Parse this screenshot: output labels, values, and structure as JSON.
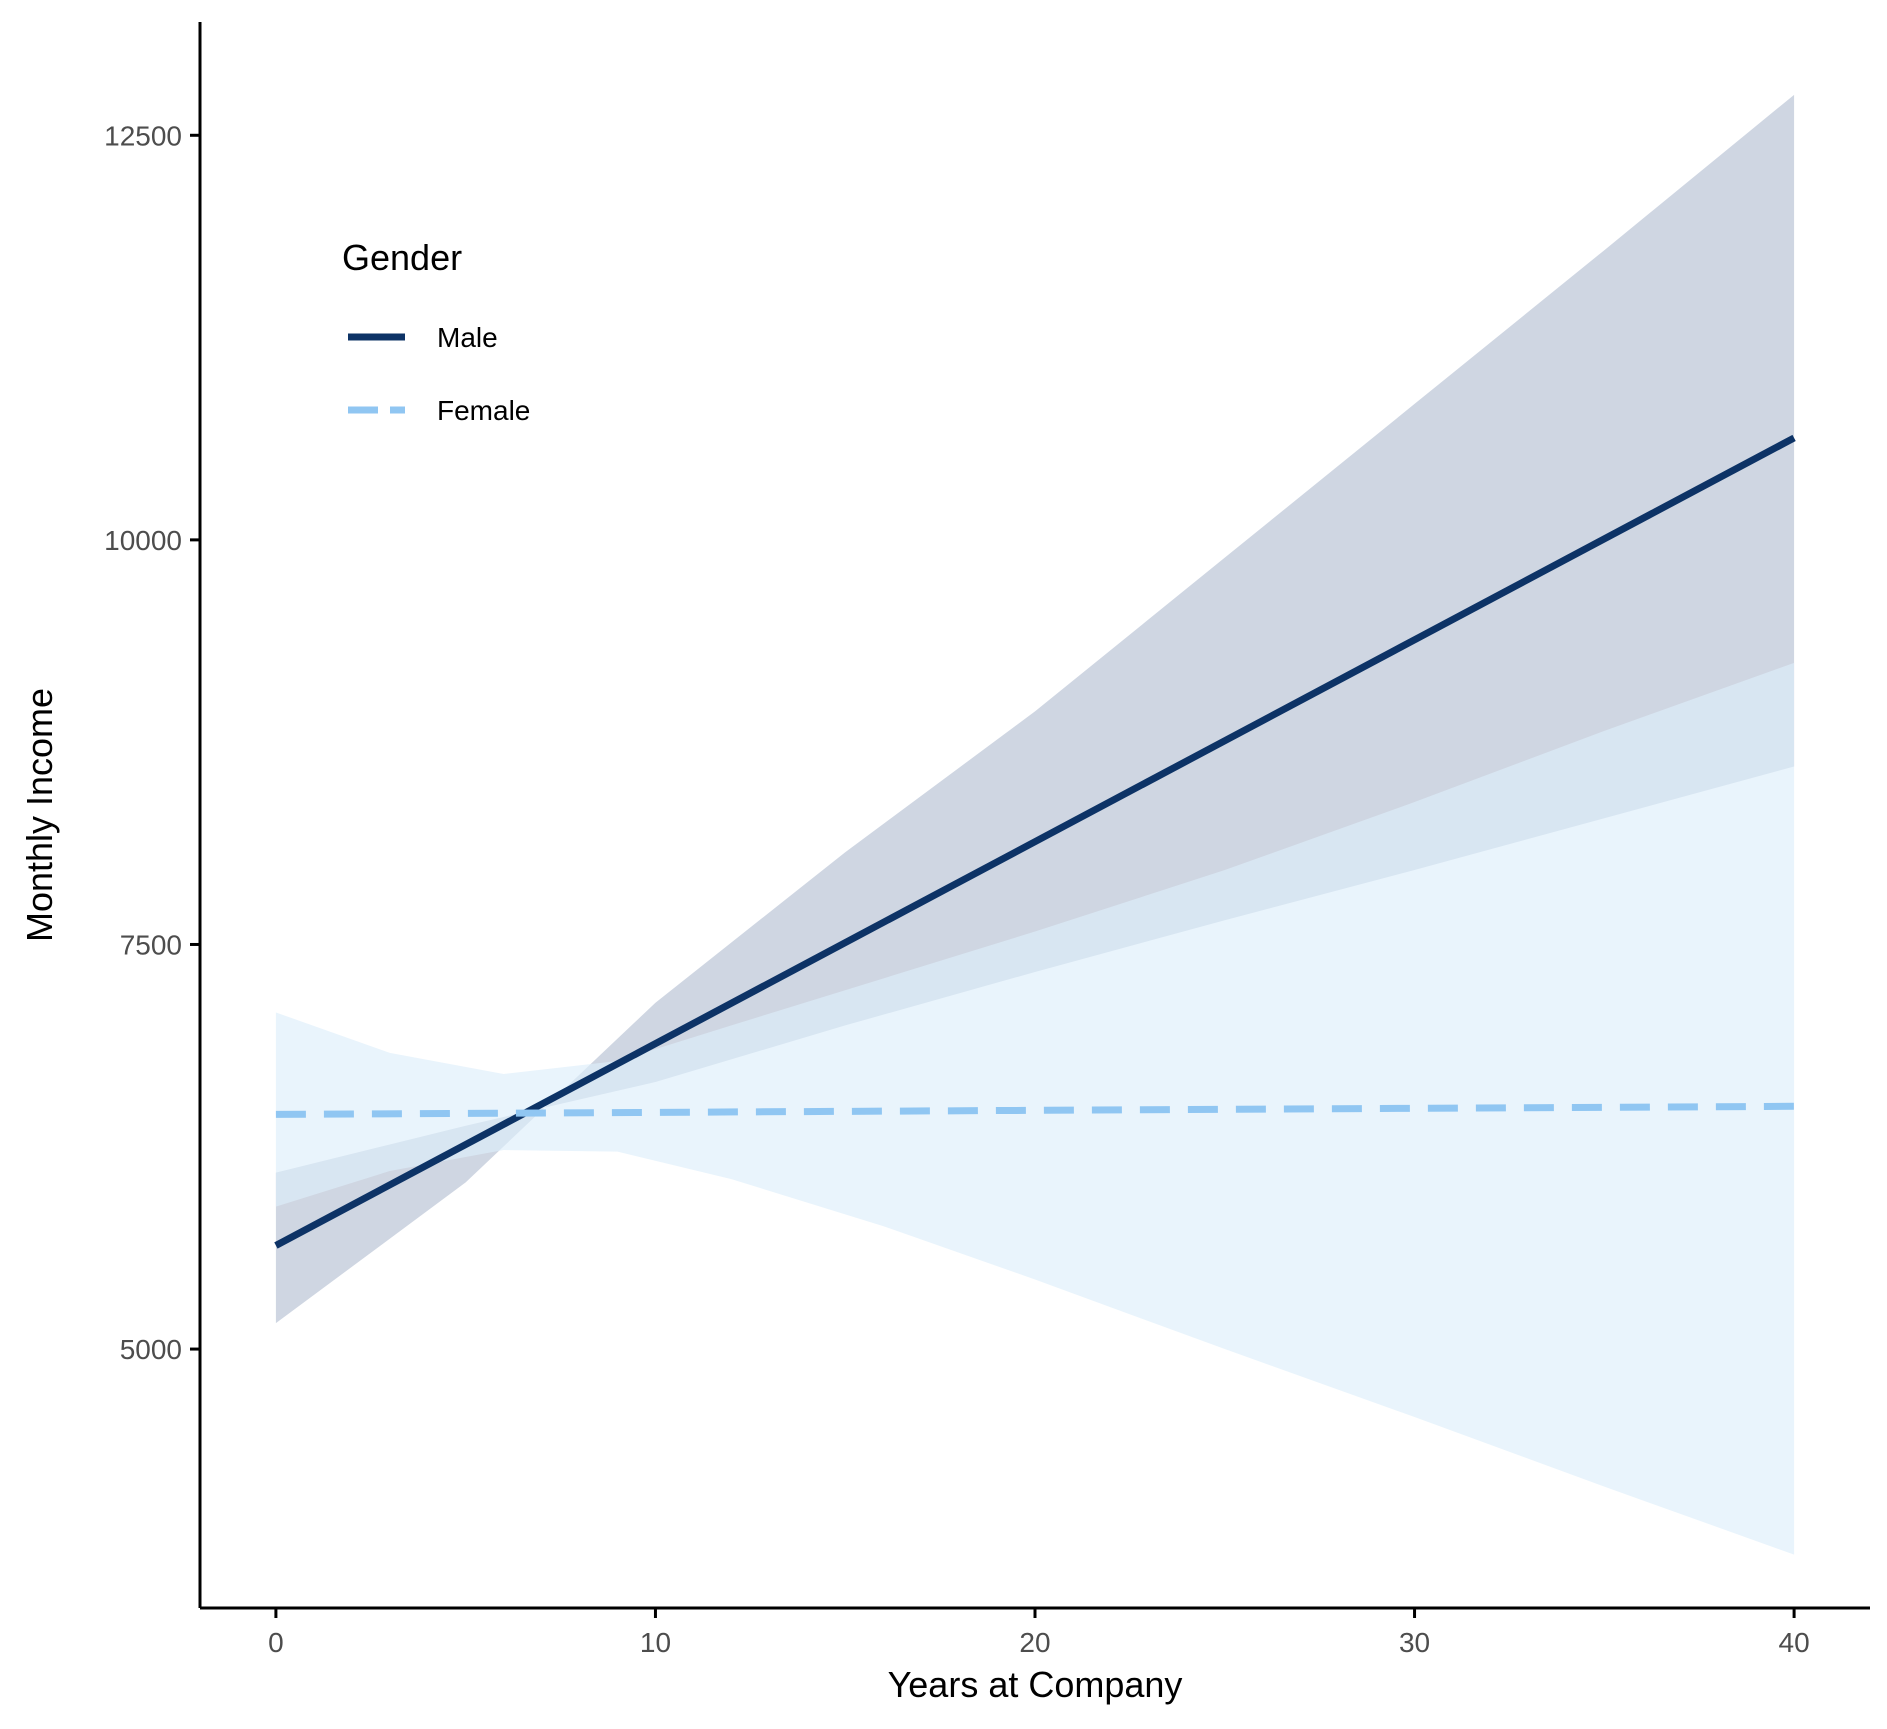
{
  "chart_data": {
    "type": "line",
    "xlabel": "Years at Company",
    "ylabel": "Monthly Income",
    "xlim": [
      -2,
      42
    ],
    "ylim": [
      3400,
      13200
    ],
    "x_ticks": [
      0,
      10,
      20,
      30,
      40
    ],
    "y_ticks": [
      5000,
      7500,
      10000,
      12500
    ],
    "x_tick_labels": [
      "0",
      "10",
      "20",
      "30",
      "40"
    ],
    "y_tick_labels": [
      "5000",
      "7500",
      "10000",
      "12500"
    ],
    "grid": false,
    "legend": {
      "title": "Gender",
      "placement": "top-left",
      "entries": [
        {
          "label": "Male",
          "series": 0
        },
        {
          "label": "Female",
          "series": 1
        }
      ]
    },
    "series": [
      {
        "name": "Male",
        "color": "#0d3366",
        "band_color": "#cfd6e2",
        "dash": "solid",
        "x": [
          0,
          40
        ],
        "y": [
          5640,
          10630
        ],
        "band_x": [
          0,
          5,
          10,
          15,
          20,
          25,
          30,
          35,
          40
        ],
        "band_lower": [
          6090,
          6380,
          6650,
          7000,
          7330,
          7650,
          7960,
          8280,
          8600
        ],
        "band_upper": [
          5160,
          6030,
          7140,
          8070,
          8940,
          9890,
          10840,
          11790,
          12750
        ]
      },
      {
        "name": "Female",
        "color": "#90c6f2",
        "band_color": "#ddeefb",
        "dash": "dashed",
        "x": [
          0,
          40
        ],
        "y": [
          6450,
          6500
        ],
        "band_x": [
          0,
          3,
          6,
          9,
          12,
          16,
          20,
          25,
          30,
          35,
          40
        ],
        "band_lower": [
          5880,
          6100,
          6230,
          6220,
          6050,
          5760,
          5430,
          5000,
          4580,
          4150,
          3730
        ],
        "band_upper": [
          7080,
          6830,
          6700,
          6780,
          7000,
          7290,
          7580,
          7960,
          8380,
          8820,
          9240
        ]
      }
    ]
  }
}
